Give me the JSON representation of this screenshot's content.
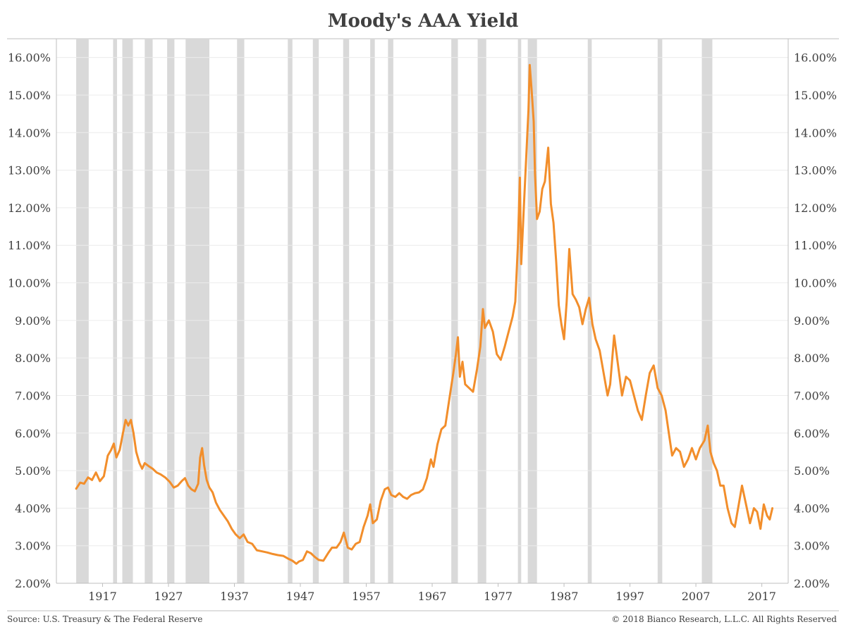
{
  "chart_data": {
    "type": "line",
    "title": "Moody's AAA Yield",
    "xlabel": "",
    "ylabel": "",
    "xlim": [
      1910,
      2021
    ],
    "ylim": [
      2.0,
      16.5
    ],
    "y_ticks": [
      "2.00%",
      "3.00%",
      "4.00%",
      "5.00%",
      "6.00%",
      "7.00%",
      "8.00%",
      "9.00%",
      "10.00%",
      "11.00%",
      "12.00%",
      "13.00%",
      "14.00%",
      "15.00%",
      "16.00%"
    ],
    "y_tick_values": [
      2,
      3,
      4,
      5,
      6,
      7,
      8,
      9,
      10,
      11,
      12,
      13,
      14,
      15,
      16
    ],
    "x_ticks": [
      "1917",
      "1927",
      "1937",
      "1947",
      "1957",
      "1967",
      "1977",
      "1987",
      "1997",
      "2007",
      "2017"
    ],
    "x_tick_values": [
      1917,
      1927,
      1937,
      1947,
      1957,
      1967,
      1977,
      1987,
      1997,
      2007,
      2017
    ],
    "secondary_y_axis": true,
    "grid": true,
    "legend": "none",
    "colors": {
      "line": "#F28E2B",
      "recession": "#D9D9D9",
      "axis": "#BFBFBF",
      "grid": "#ECECEC"
    },
    "recessions": [
      [
        1913.0,
        1914.9
      ],
      [
        1918.6,
        1919.2
      ],
      [
        1920.0,
        1921.6
      ],
      [
        1923.4,
        1924.6
      ],
      [
        1926.8,
        1927.9
      ],
      [
        1929.6,
        1933.2
      ],
      [
        1937.4,
        1938.5
      ],
      [
        1945.1,
        1945.8
      ],
      [
        1948.9,
        1949.8
      ],
      [
        1953.5,
        1954.4
      ],
      [
        1957.6,
        1958.3
      ],
      [
        1960.3,
        1961.1
      ],
      [
        1969.9,
        1970.9
      ],
      [
        1973.9,
        1975.2
      ],
      [
        1980.0,
        1980.5
      ],
      [
        1981.5,
        1982.9
      ],
      [
        1990.6,
        1991.2
      ],
      [
        2001.2,
        2001.9
      ],
      [
        2007.9,
        2009.5
      ]
    ],
    "series": [
      {
        "values": [
          [
            1913.0,
            4.52
          ],
          [
            1913.6,
            4.68
          ],
          [
            1914.2,
            4.65
          ],
          [
            1914.8,
            4.82
          ],
          [
            1915.4,
            4.75
          ],
          [
            1916.0,
            4.95
          ],
          [
            1916.6,
            4.72
          ],
          [
            1917.2,
            4.85
          ],
          [
            1917.8,
            5.4
          ],
          [
            1918.3,
            5.55
          ],
          [
            1918.7,
            5.72
          ],
          [
            1919.1,
            5.35
          ],
          [
            1919.6,
            5.55
          ],
          [
            1920.1,
            6.0
          ],
          [
            1920.5,
            6.35
          ],
          [
            1920.9,
            6.2
          ],
          [
            1921.3,
            6.35
          ],
          [
            1921.7,
            6.0
          ],
          [
            1922.1,
            5.5
          ],
          [
            1922.6,
            5.2
          ],
          [
            1923.0,
            5.05
          ],
          [
            1923.4,
            5.2
          ],
          [
            1924.0,
            5.12
          ],
          [
            1924.6,
            5.05
          ],
          [
            1925.2,
            4.95
          ],
          [
            1925.8,
            4.9
          ],
          [
            1926.5,
            4.82
          ],
          [
            1927.2,
            4.7
          ],
          [
            1927.8,
            4.55
          ],
          [
            1928.4,
            4.6
          ],
          [
            1929.0,
            4.72
          ],
          [
            1929.5,
            4.8
          ],
          [
            1930.0,
            4.6
          ],
          [
            1930.5,
            4.5
          ],
          [
            1931.0,
            4.45
          ],
          [
            1931.5,
            4.65
          ],
          [
            1931.8,
            5.35
          ],
          [
            1932.1,
            5.6
          ],
          [
            1932.4,
            5.15
          ],
          [
            1932.8,
            4.75
          ],
          [
            1933.2,
            4.55
          ],
          [
            1933.7,
            4.42
          ],
          [
            1934.2,
            4.15
          ],
          [
            1934.8,
            3.95
          ],
          [
            1935.4,
            3.8
          ],
          [
            1936.0,
            3.65
          ],
          [
            1936.6,
            3.45
          ],
          [
            1937.2,
            3.3
          ],
          [
            1937.8,
            3.2
          ],
          [
            1938.4,
            3.3
          ],
          [
            1939.0,
            3.1
          ],
          [
            1939.7,
            3.05
          ],
          [
            1940.4,
            2.88
          ],
          [
            1941.2,
            2.85
          ],
          [
            1942.0,
            2.82
          ],
          [
            1942.8,
            2.78
          ],
          [
            1943.6,
            2.75
          ],
          [
            1944.4,
            2.73
          ],
          [
            1945.2,
            2.65
          ],
          [
            1945.8,
            2.6
          ],
          [
            1946.4,
            2.52
          ],
          [
            1946.8,
            2.58
          ],
          [
            1947.4,
            2.62
          ],
          [
            1948.0,
            2.85
          ],
          [
            1948.6,
            2.8
          ],
          [
            1949.2,
            2.7
          ],
          [
            1949.8,
            2.62
          ],
          [
            1950.5,
            2.6
          ],
          [
            1951.2,
            2.8
          ],
          [
            1951.8,
            2.95
          ],
          [
            1952.5,
            2.95
          ],
          [
            1953.1,
            3.1
          ],
          [
            1953.6,
            3.35
          ],
          [
            1954.2,
            2.95
          ],
          [
            1954.8,
            2.9
          ],
          [
            1955.4,
            3.05
          ],
          [
            1956.0,
            3.1
          ],
          [
            1956.6,
            3.5
          ],
          [
            1957.2,
            3.8
          ],
          [
            1957.6,
            4.1
          ],
          [
            1958.0,
            3.6
          ],
          [
            1958.6,
            3.7
          ],
          [
            1959.2,
            4.2
          ],
          [
            1959.8,
            4.5
          ],
          [
            1960.3,
            4.55
          ],
          [
            1960.8,
            4.35
          ],
          [
            1961.4,
            4.3
          ],
          [
            1962.0,
            4.4
          ],
          [
            1962.6,
            4.3
          ],
          [
            1963.2,
            4.25
          ],
          [
            1963.8,
            4.35
          ],
          [
            1964.4,
            4.4
          ],
          [
            1965.0,
            4.42
          ],
          [
            1965.6,
            4.5
          ],
          [
            1966.2,
            4.8
          ],
          [
            1966.8,
            5.3
          ],
          [
            1967.2,
            5.1
          ],
          [
            1967.8,
            5.7
          ],
          [
            1968.4,
            6.1
          ],
          [
            1969.0,
            6.2
          ],
          [
            1969.6,
            6.9
          ],
          [
            1970.2,
            7.6
          ],
          [
            1970.6,
            8.1
          ],
          [
            1970.9,
            8.55
          ],
          [
            1971.2,
            7.5
          ],
          [
            1971.6,
            7.9
          ],
          [
            1972.0,
            7.3
          ],
          [
            1972.6,
            7.2
          ],
          [
            1973.2,
            7.1
          ],
          [
            1973.8,
            7.7
          ],
          [
            1974.3,
            8.3
          ],
          [
            1974.7,
            9.3
          ],
          [
            1975.0,
            8.8
          ],
          [
            1975.6,
            9.0
          ],
          [
            1976.2,
            8.7
          ],
          [
            1976.8,
            8.1
          ],
          [
            1977.4,
            7.95
          ],
          [
            1978.0,
            8.3
          ],
          [
            1978.6,
            8.7
          ],
          [
            1979.2,
            9.1
          ],
          [
            1979.6,
            9.5
          ],
          [
            1980.0,
            11.0
          ],
          [
            1980.3,
            12.8
          ],
          [
            1980.5,
            10.5
          ],
          [
            1980.9,
            12.0
          ],
          [
            1981.3,
            13.5
          ],
          [
            1981.6,
            14.6
          ],
          [
            1981.8,
            15.8
          ],
          [
            1982.1,
            15.1
          ],
          [
            1982.4,
            14.3
          ],
          [
            1982.6,
            12.9
          ],
          [
            1982.9,
            11.7
          ],
          [
            1983.3,
            11.9
          ],
          [
            1983.7,
            12.5
          ],
          [
            1984.1,
            12.7
          ],
          [
            1984.6,
            13.6
          ],
          [
            1985.0,
            12.1
          ],
          [
            1985.4,
            11.6
          ],
          [
            1985.8,
            10.6
          ],
          [
            1986.2,
            9.4
          ],
          [
            1986.6,
            8.9
          ],
          [
            1987.0,
            8.5
          ],
          [
            1987.4,
            9.5
          ],
          [
            1987.8,
            10.9
          ],
          [
            1988.3,
            9.7
          ],
          [
            1988.8,
            9.55
          ],
          [
            1989.3,
            9.35
          ],
          [
            1989.8,
            8.9
          ],
          [
            1990.3,
            9.3
          ],
          [
            1990.8,
            9.6
          ],
          [
            1991.3,
            8.9
          ],
          [
            1991.8,
            8.5
          ],
          [
            1992.4,
            8.2
          ],
          [
            1993.0,
            7.6
          ],
          [
            1993.6,
            7.0
          ],
          [
            1994.0,
            7.3
          ],
          [
            1994.6,
            8.6
          ],
          [
            1995.2,
            7.8
          ],
          [
            1995.8,
            7.0
          ],
          [
            1996.4,
            7.5
          ],
          [
            1997.0,
            7.4
          ],
          [
            1997.6,
            7.0
          ],
          [
            1998.2,
            6.6
          ],
          [
            1998.8,
            6.35
          ],
          [
            1999.4,
            7.0
          ],
          [
            2000.0,
            7.6
          ],
          [
            2000.6,
            7.8
          ],
          [
            2001.2,
            7.2
          ],
          [
            2001.8,
            7.0
          ],
          [
            2002.4,
            6.6
          ],
          [
            2002.9,
            6.0
          ],
          [
            2003.4,
            5.4
          ],
          [
            2004.0,
            5.6
          ],
          [
            2004.6,
            5.5
          ],
          [
            2005.2,
            5.1
          ],
          [
            2005.8,
            5.3
          ],
          [
            2006.4,
            5.6
          ],
          [
            2007.0,
            5.3
          ],
          [
            2007.6,
            5.6
          ],
          [
            2008.3,
            5.8
          ],
          [
            2008.8,
            6.2
          ],
          [
            2009.2,
            5.5
          ],
          [
            2009.7,
            5.2
          ],
          [
            2010.2,
            5.0
          ],
          [
            2010.7,
            4.6
          ],
          [
            2011.2,
            4.6
          ],
          [
            2011.8,
            4.0
          ],
          [
            2012.4,
            3.6
          ],
          [
            2012.9,
            3.5
          ],
          [
            2013.5,
            4.1
          ],
          [
            2014.0,
            4.6
          ],
          [
            2014.6,
            4.1
          ],
          [
            2015.2,
            3.6
          ],
          [
            2015.8,
            4.0
          ],
          [
            2016.3,
            3.9
          ],
          [
            2016.8,
            3.45
          ],
          [
            2017.3,
            4.1
          ],
          [
            2017.8,
            3.8
          ],
          [
            2018.2,
            3.7
          ],
          [
            2018.6,
            4.0
          ]
        ]
      }
    ]
  },
  "footer": {
    "source": "Source: U.S. Treasury & The Federal Reserve",
    "copyright": "© 2018 Bianco Research, L.L.C. All Rights Reserved"
  }
}
